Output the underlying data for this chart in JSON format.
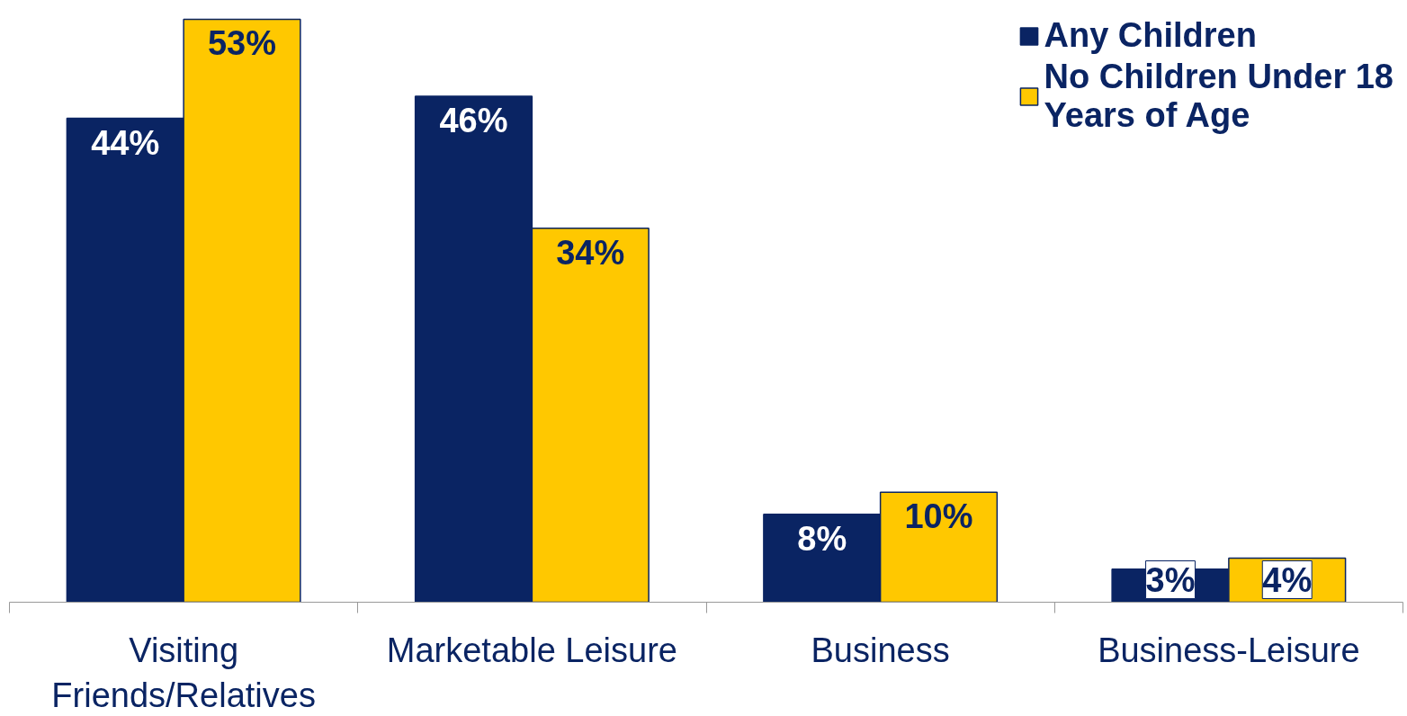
{
  "chart_data": {
    "type": "bar",
    "categories": [
      "Visiting Friends/Relatives",
      "Marketable Leisure",
      "Business",
      "Business-Leisure"
    ],
    "series": [
      {
        "name": "Any Children",
        "color": "#0a2463",
        "values": [
          44,
          46,
          8,
          3
        ],
        "value_labels": [
          "44%",
          "46%",
          "8%",
          "3%"
        ]
      },
      {
        "name": "No Children Under 18 Years of Age",
        "color": "#ffc800",
        "values": [
          53,
          34,
          10,
          4
        ],
        "value_labels": [
          "53%",
          "34%",
          "10%",
          "4%"
        ]
      }
    ],
    "legend": "top right",
    "grid": false
  }
}
